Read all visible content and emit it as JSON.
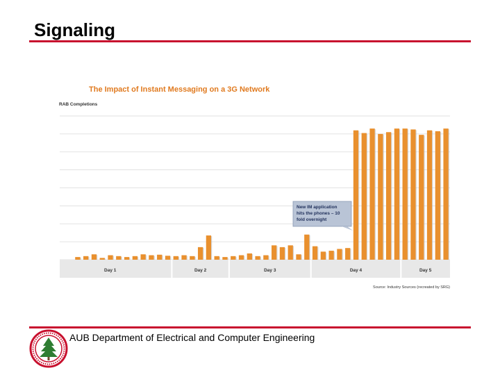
{
  "slide": {
    "title": "Signaling",
    "footer": "AUB Department of Electrical and Computer Engineering"
  },
  "chart_data": {
    "type": "bar",
    "title": "The Impact of Instant Messaging on a 3G Network",
    "ylabel": "RAB Completions",
    "xlabel": "",
    "source": "Source: Industry Sources (recreated by SRG)",
    "annotation": {
      "text_lines": [
        "New IM application",
        "hits the phones – 10",
        "fold overnight"
      ]
    },
    "ylim": [
      0,
      8
    ],
    "grid": true,
    "days": [
      {
        "label": "Day 1",
        "values": [
          0.15,
          0.2,
          0.3,
          0.1,
          0.25,
          0.2,
          0.15,
          0.2,
          0.3,
          0.25,
          0.28,
          0.22
        ]
      },
      {
        "label": "Day 2",
        "values": [
          0.2,
          0.25,
          0.2,
          0.7,
          1.35,
          0.2,
          0.15
        ]
      },
      {
        "label": "Day 3",
        "values": [
          0.2,
          0.25,
          0.35,
          0.2,
          0.25,
          0.8,
          0.7,
          0.8,
          0.3,
          1.4
        ]
      },
      {
        "label": "Day 4",
        "values": [
          0.75,
          0.45,
          0.5,
          0.6,
          0.65,
          7.2,
          7.05,
          7.3,
          7.0,
          7.1,
          7.3
        ]
      },
      {
        "label": "Day 5",
        "values": [
          7.3,
          7.25,
          6.95,
          7.2,
          7.15,
          7.3
        ]
      }
    ],
    "colors": {
      "bar": "#e9902e",
      "grid": "#d9d9d9",
      "axis_band": "#e8e8e8",
      "callout_bg": "#b9c4d6",
      "callout_border": "#8a9ab5"
    }
  }
}
